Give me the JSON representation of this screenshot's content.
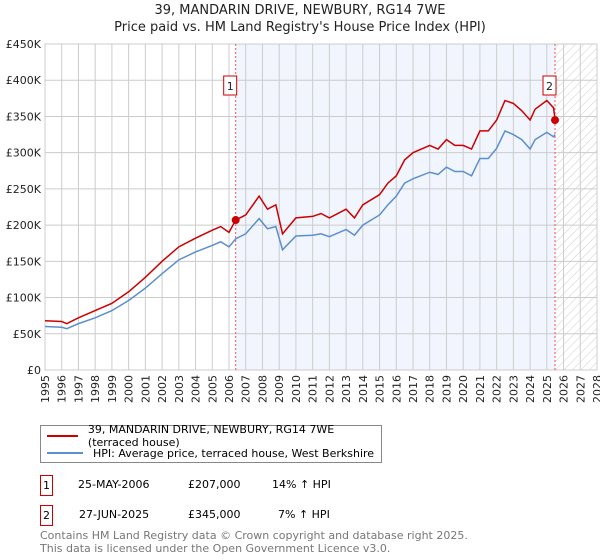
{
  "chart_data": {
    "type": "line",
    "title": "39, MANDARIN DRIVE, NEWBURY, RG14 7WE",
    "subtitle": "Price paid vs. HM Land Registry's House Price Index (HPI)",
    "xlim": [
      1995,
      2028
    ],
    "ylim": [
      0,
      450000
    ],
    "x_ticks": [
      "1995",
      "1996",
      "1997",
      "1998",
      "1999",
      "2000",
      "2001",
      "2002",
      "2003",
      "2004",
      "2005",
      "2006",
      "2007",
      "2008",
      "2009",
      "2010",
      "2011",
      "2012",
      "2013",
      "2014",
      "2015",
      "2016",
      "2017",
      "2018",
      "2019",
      "2020",
      "2021",
      "2022",
      "2023",
      "2024",
      "2025",
      "2026",
      "2027",
      "2028"
    ],
    "y_ticks": [
      {
        "v": 0,
        "label": "£0"
      },
      {
        "v": 50000,
        "label": "£50K"
      },
      {
        "v": 100000,
        "label": "£100K"
      },
      {
        "v": 150000,
        "label": "£150K"
      },
      {
        "v": 200000,
        "label": "£200K"
      },
      {
        "v": 250000,
        "label": "£250K"
      },
      {
        "v": 300000,
        "label": "£300K"
      },
      {
        "v": 350000,
        "label": "£350K"
      },
      {
        "v": 400000,
        "label": "£400K"
      },
      {
        "v": 450000,
        "label": "£450K"
      }
    ],
    "grid": true,
    "series": [
      {
        "name": "39, MANDARIN DRIVE, NEWBURY, RG14 7WE (terraced house)",
        "color": "#cc0000",
        "x": [
          1995,
          1996,
          1996.3,
          1997,
          1998,
          1999,
          2000,
          2001,
          2002,
          2003,
          2004,
          2005,
          2005.5,
          2006,
          2006.4,
          2007,
          2007.8,
          2008.3,
          2008.8,
          2009.2,
          2010,
          2011,
          2011.5,
          2012,
          2013,
          2013.5,
          2014,
          2015,
          2015.5,
          2016,
          2016.5,
          2017,
          2018,
          2018.5,
          2019,
          2019.5,
          2020,
          2020.5,
          2021,
          2021.5,
          2022,
          2022.5,
          2023,
          2023.5,
          2024,
          2024.3,
          2025,
          2025.4,
          2025.5
        ],
        "y": [
          68000,
          67000,
          64000,
          72000,
          82000,
          92000,
          108000,
          128000,
          150000,
          170000,
          182000,
          193000,
          198000,
          190000,
          207000,
          214000,
          240000,
          222000,
          228000,
          188000,
          210000,
          212000,
          216000,
          210000,
          222000,
          210000,
          228000,
          242000,
          258000,
          268000,
          290000,
          300000,
          310000,
          305000,
          318000,
          310000,
          310000,
          305000,
          330000,
          330000,
          345000,
          372000,
          368000,
          358000,
          345000,
          360000,
          372000,
          362000,
          345000
        ]
      },
      {
        "name": "HPI: Average price, terraced house, West Berkshire",
        "color": "#5b8fd0",
        "x": [
          1995,
          1996,
          1996.3,
          1997,
          1998,
          1999,
          2000,
          2001,
          2002,
          2003,
          2004,
          2005,
          2005.5,
          2006,
          2006.4,
          2007,
          2007.8,
          2008.3,
          2008.8,
          2009.2,
          2010,
          2011,
          2011.5,
          2012,
          2013,
          2013.5,
          2014,
          2015,
          2015.5,
          2016,
          2016.5,
          2017,
          2018,
          2018.5,
          2019,
          2019.5,
          2020,
          2020.5,
          2021,
          2021.5,
          2022,
          2022.5,
          2023,
          2023.5,
          2024,
          2024.3,
          2025,
          2025.4,
          2025.5
        ],
        "y": [
          60000,
          59000,
          57000,
          64000,
          72000,
          82000,
          96000,
          113000,
          133000,
          152000,
          163000,
          172000,
          177000,
          170000,
          181000,
          188000,
          209000,
          195000,
          198000,
          166000,
          185000,
          186000,
          188000,
          184000,
          194000,
          186000,
          200000,
          214000,
          228000,
          240000,
          258000,
          264000,
          273000,
          270000,
          280000,
          274000,
          274000,
          268000,
          292000,
          292000,
          306000,
          330000,
          325000,
          318000,
          305000,
          318000,
          328000,
          322000,
          325000
        ]
      }
    ],
    "sales": [
      {
        "id": "1",
        "date": "25-MAY-2006",
        "x": 2006.4,
        "price": "£207,000",
        "value": 207000,
        "hpi": "14% ↑ HPI"
      },
      {
        "id": "2",
        "date": "27-JUN-2025",
        "x": 2025.49,
        "price": "£345,000",
        "value": 345000,
        "hpi": "7% ↑ HPI"
      }
    ],
    "shaded_span": [
      2006.4,
      2025.49
    ],
    "hatched_from": 2025.49
  },
  "footer": {
    "line1": "Contains HM Land Registry data © Crown copyright and database right 2025.",
    "line2": "This data is licensed under the Open Government Licence v3.0."
  }
}
